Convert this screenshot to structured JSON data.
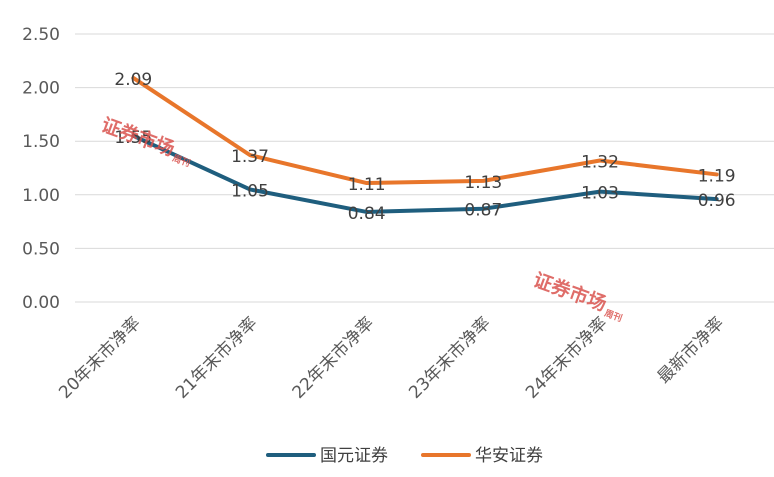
{
  "chart_data": {
    "type": "line",
    "categories": [
      "20年末市净率",
      "21年末市净率",
      "22年末市净率",
      "23年末市净率",
      "24年末市净率",
      "最新市净率"
    ],
    "series": [
      {
        "name": "国元证券",
        "values": [
          1.55,
          1.05,
          0.84,
          0.87,
          1.03,
          0.96
        ],
        "labels": [
          "1.55",
          "1.05",
          "0.84",
          "0.87",
          "1.03",
          "0.96"
        ],
        "color": "#1f5e7e"
      },
      {
        "name": "华安证券",
        "values": [
          2.09,
          1.37,
          1.11,
          1.13,
          1.32,
          1.19
        ],
        "labels": [
          "2.09",
          "1.37",
          "1.11",
          "1.13",
          "1.32",
          "1.19"
        ],
        "color": "#e8762b"
      }
    ],
    "yticks": [
      "0.00",
      "0.50",
      "1.00",
      "1.50",
      "2.00",
      "2.50"
    ],
    "ylim": [
      0,
      2.5
    ],
    "grid": true,
    "legend": "bottom"
  },
  "watermark": {
    "text": "证券市场",
    "side": "周刊"
  },
  "colors": {
    "grid": "#d9d9d9",
    "text": "#595959"
  }
}
